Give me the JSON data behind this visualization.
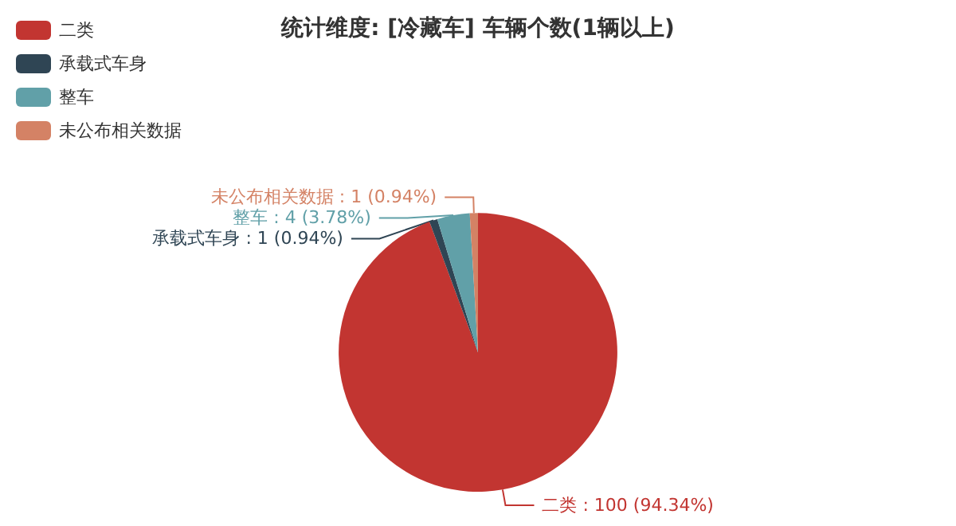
{
  "chart_data": {
    "type": "pie",
    "title": "统计维度: [冷藏车] 车辆个数(1辆以上)",
    "categories": [
      "二类",
      "承载式车身",
      "整车",
      "未公布相关数据"
    ],
    "values": [
      100,
      1,
      4,
      1
    ],
    "value_labels": [
      ": 100 (94.34%)",
      ": 1 (0.94%)",
      ": 4 (3.78%)",
      ": 1 (0.94%)"
    ],
    "colors": [
      "#c23531",
      "#2f4554",
      "#61a0a8",
      "#d48265"
    ],
    "legend": "top left"
  }
}
